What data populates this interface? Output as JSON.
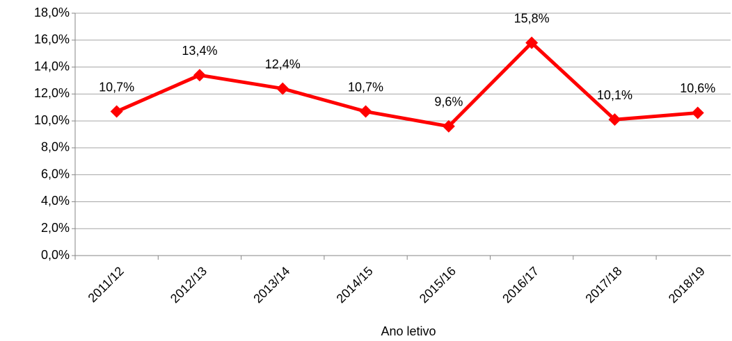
{
  "chart_data": {
    "type": "line",
    "x_label": "Ano letivo",
    "categories": [
      "2011/12",
      "2012/13",
      "2013/14",
      "2014/15",
      "2015/16",
      "2016/17",
      "2017/18",
      "2018/19"
    ],
    "series": [
      {
        "color": "#ff0000",
        "values": [
          10.7,
          13.4,
          12.4,
          10.7,
          9.6,
          15.8,
          10.1,
          10.6
        ],
        "value_labels": [
          "10,7%",
          "13,4%",
          "12,4%",
          "10,7%",
          "9,6%",
          "15,8%",
          "10,1%",
          "10,6%"
        ]
      }
    ],
    "ylim": [
      0,
      18
    ],
    "yticks": [
      {
        "value": 0,
        "label": "0,0%"
      },
      {
        "value": 2,
        "label": "2,0%"
      },
      {
        "value": 4,
        "label": "4,0%"
      },
      {
        "value": 6,
        "label": "6,0%"
      },
      {
        "value": 8,
        "label": "8,0%"
      },
      {
        "value": 10,
        "label": "10,0%"
      },
      {
        "value": 12,
        "label": "12,0%"
      },
      {
        "value": 14,
        "label": "14,0%"
      },
      {
        "value": 16,
        "label": "16,0%"
      },
      {
        "value": 18,
        "label": "18,0%"
      }
    ],
    "grid": true
  }
}
